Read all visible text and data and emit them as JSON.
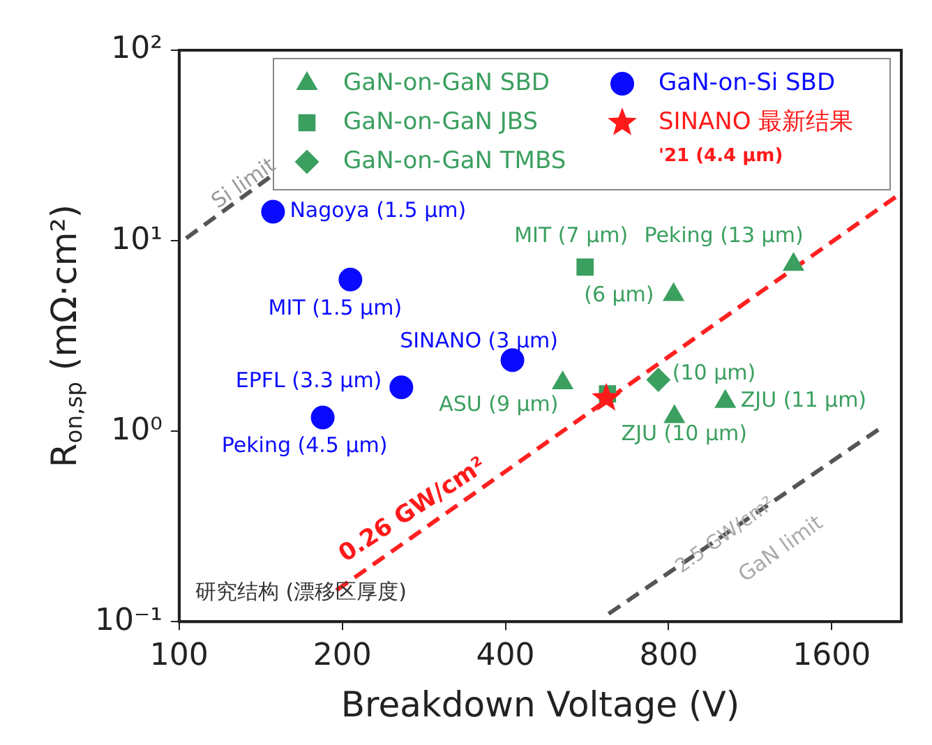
{
  "chart_data": {
    "type": "scatter",
    "xlabel": "Breakdown Voltage (V)",
    "ylabel": "R$_{on,sp}$ (mΩ·cm²)",
    "log": "xy",
    "xlim": [
      100,
      2150
    ],
    "xticks": [
      100,
      200,
      400,
      800,
      1600
    ],
    "ylim": [
      0.1,
      100
    ],
    "yticks": [
      {
        "value": 0.1,
        "label": "10⁻¹"
      },
      {
        "value": 1,
        "label": "10⁰"
      },
      {
        "value": 10,
        "label": "10¹"
      },
      {
        "value": 100,
        "label": "10²"
      }
    ],
    "grid": false,
    "legend": "top right",
    "series": [
      {
        "name": "GaN-on-GaN SBD",
        "color": "#3a9f5f",
        "marker": "triangle",
        "x": [
          1360,
          817,
          510,
          820,
          1018
        ],
        "values": [
          7.5,
          5.2,
          1.79,
          1.19,
          1.43
        ]
      },
      {
        "name": "GaN-on-GaN JBS",
        "color": "#3a9f5f",
        "marker": "square",
        "x": [
          561,
          617
        ],
        "values": [
          7.27,
          1.57
        ]
      },
      {
        "name": "GaN-on-GaN TMBS",
        "color": "#3a9f5f",
        "marker": "diamond",
        "x": [
          766
        ],
        "values": [
          1.86
        ]
      },
      {
        "name": "GaN-on-Si SBD",
        "color": "#0a0aff",
        "marker": "circle",
        "x": [
          149,
          207,
          412,
          257,
          184
        ],
        "values": [
          14.2,
          6.25,
          2.36,
          1.7,
          1.18
        ]
      },
      {
        "name": "SINANO 最新结果",
        "color": "#ff1a1a",
        "marker": "star",
        "x": [
          614
        ],
        "values": [
          1.49
        ]
      },
      {
        "type": "line",
        "color": "#555555",
        "marker": "none",
        "line_style": "dashed",
        "x": [
          103,
          150
        ],
        "values": [
          10.3,
          22.5
        ]
      },
      {
        "type": "line",
        "color": "#ff2020",
        "marker": "none",
        "line_style": "dashed",
        "x": [
          195,
          2150
        ],
        "values": [
          0.146,
          17.8
        ]
      },
      {
        "type": "line",
        "color": "#555555",
        "marker": "none",
        "line_style": "dashed",
        "x": [
          620,
          2000
        ],
        "values": [
          0.11,
          1.07
        ]
      }
    ],
    "annotations": [
      {
        "text": "Nagoya (1.5 μm)",
        "x": 149,
        "y": 14.2
      },
      {
        "text": "MIT (1.5 μm)",
        "x": 207,
        "y": 6.25
      },
      {
        "text": "SINANO (3 μm)",
        "x": 412,
        "y": 2.36
      },
      {
        "text": "EPFL (3.3 μm)",
        "x": 257,
        "y": 1.7
      },
      {
        "text": "Peking (4.5 μm)",
        "x": 184,
        "y": 1.18
      },
      {
        "text": "Peking (13 μm)",
        "x": 1360,
        "y": 7.5
      },
      {
        "text": "MIT (7 μm)",
        "x": 561,
        "y": 7.27
      },
      {
        "text": "(6 μm)",
        "x": 817,
        "y": 5.2
      },
      {
        "text": "ASU (9 μm)",
        "x": 510,
        "y": 1.79
      },
      {
        "text": "ZJU (10 μm)",
        "x": 820,
        "y": 1.19
      },
      {
        "text": "ZJU (11 μm)",
        "x": 1018,
        "y": 1.43
      },
      {
        "text": "(10 μm)",
        "x": 766,
        "y": 1.86
      },
      "Si limit",
      "0.26 GW/cm²",
      "2.5 GW/cm²",
      "GaN limit",
      "研究结构 (漂移区厚度)",
      "'21 (4.4 μm)"
    ]
  }
}
